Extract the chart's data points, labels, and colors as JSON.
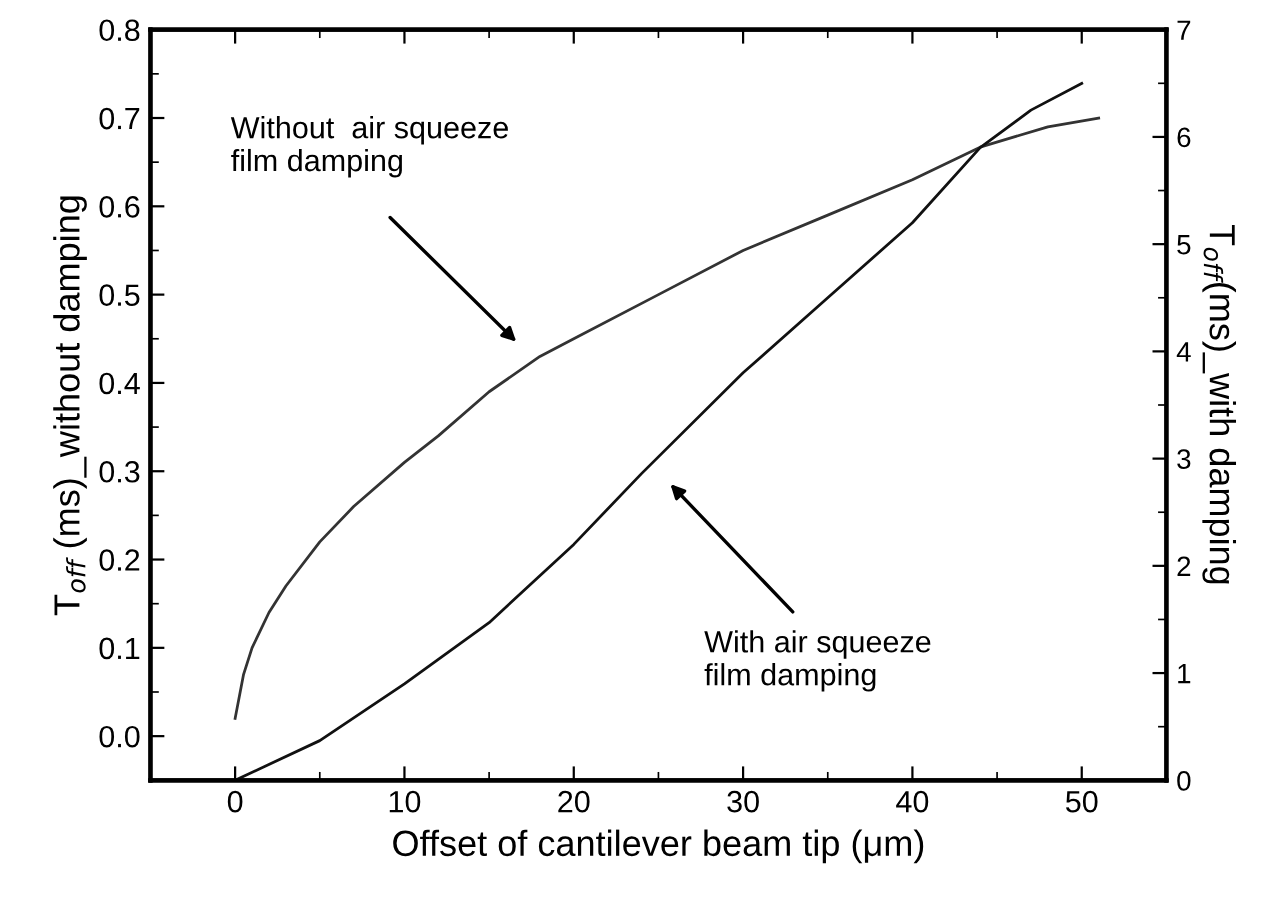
{
  "chart_data": {
    "type": "line",
    "xlabel": "Offset of cantilever beam tip (μm)",
    "ylabel": "T$_{off}$ (ms)_without damping",
    "y2label": "T$_{off}$(ms)_with damping",
    "xlim": [
      -5,
      55
    ],
    "xticks": [
      0,
      10,
      20,
      30,
      40,
      50
    ],
    "ylim": [
      -0.05,
      0.8
    ],
    "yticks": [
      {
        "value": 0,
        "label": "0.0"
      },
      {
        "value": 0.1,
        "label": "0.1"
      },
      {
        "value": 0.2,
        "label": "0.2"
      },
      {
        "value": 0.3,
        "label": "0.3"
      },
      {
        "value": 0.4,
        "label": "0.4"
      },
      {
        "value": 0.5,
        "label": "0.5"
      },
      {
        "value": 0.6,
        "label": "0.6"
      },
      {
        "value": 0.7,
        "label": "0.7"
      },
      {
        "value": 0.8,
        "label": "0.8"
      }
    ],
    "y2lim": [
      0,
      7
    ],
    "y2ticks": [
      0,
      1,
      2,
      3,
      4,
      5,
      6,
      7
    ],
    "grid": false,
    "marker": "none",
    "line_style": "solid",
    "series": [
      {
        "color": "#333333",
        "x": [
          0,
          0.5,
          1,
          2,
          3,
          5,
          7,
          10,
          12,
          15,
          18,
          20,
          25,
          30,
          35,
          40,
          44,
          48,
          51
        ],
        "values": [
          0.02,
          0.07,
          0.1,
          0.14,
          0.17,
          0.22,
          0.26,
          0.31,
          0.34,
          0.39,
          0.43,
          0.45,
          0.5,
          0.55,
          0.59,
          0.63,
          0.667,
          0.69,
          0.7
        ]
      },
      {
        "color": "#111111",
        "axis": "y2",
        "x": [
          0,
          5,
          10,
          15,
          20,
          24,
          30,
          35,
          40,
          44,
          47,
          50
        ],
        "values": [
          0,
          0.37,
          0.9,
          1.47,
          2.2,
          2.86,
          3.8,
          4.5,
          5.2,
          5.9,
          6.25,
          6.5
        ]
      }
    ],
    "annotations": [
      "Without  air squeeze\nfilm damping",
      "With air squeeze\nfilm damping"
    ]
  }
}
